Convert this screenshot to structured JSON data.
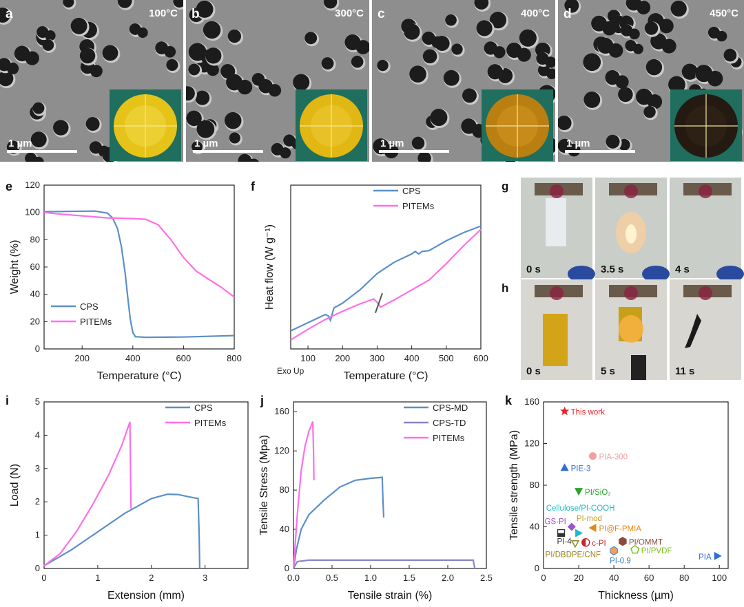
{
  "sem": [
    {
      "letter": "a",
      "temp": "100°C",
      "scale": "1 µm",
      "disc": "#e6c318",
      "glow": "#f4dd52"
    },
    {
      "letter": "b",
      "temp": "300°C",
      "scale": "1 µm",
      "disc": "#e1b714",
      "glow": "#f2cf3c"
    },
    {
      "letter": "c",
      "temp": "400°C",
      "scale": "1 µm",
      "disc": "#b97f10",
      "glow": "#d79c26"
    },
    {
      "letter": "d",
      "temp": "450°C",
      "scale": "1 µm",
      "disc": "#241a12",
      "glow": "#3a2a1c"
    }
  ],
  "photos": {
    "g": {
      "letter": "g",
      "frames": [
        "0 s",
        "3.5 s",
        "4 s"
      ]
    },
    "h": {
      "letter": "h",
      "frames": [
        "0 s",
        "5 s",
        "11 s"
      ]
    }
  },
  "chart_data": [
    {
      "id": "e",
      "type": "line",
      "letter": "e",
      "xlabel": "Temperature (°C)",
      "ylabel": "Weight (%)",
      "xlim": [
        50,
        800
      ],
      "ylim": [
        0,
        120
      ],
      "xticks": [
        200,
        400,
        600,
        800
      ],
      "yticks": [
        0,
        20,
        40,
        60,
        80,
        100,
        120
      ],
      "legend": [
        "CPS",
        "PITEMs"
      ],
      "legend_pos": "bottom-left",
      "series": [
        {
          "name": "CPS",
          "color": "#5b8fc8",
          "x": [
            50,
            150,
            250,
            300,
            320,
            340,
            355,
            370,
            380,
            390,
            400,
            410,
            450,
            600,
            800
          ],
          "y": [
            100.5,
            100.8,
            101,
            99.5,
            96,
            88,
            75,
            55,
            38,
            22,
            12,
            9,
            8.5,
            8.7,
            9.8
          ]
        },
        {
          "name": "PITEMs",
          "color": "#ff6ee8",
          "x": [
            50,
            100,
            200,
            300,
            400,
            450,
            500,
            550,
            600,
            650,
            700,
            750,
            800
          ],
          "y": [
            100,
            99,
            97.5,
            96,
            95.5,
            95,
            91,
            80,
            67,
            57,
            51,
            45,
            38
          ]
        }
      ]
    },
    {
      "id": "f",
      "type": "line",
      "letter": "f",
      "xlabel": "Temperature (°C)",
      "ylabel": "Heat flow (W g⁻¹)",
      "note": "Exo Up",
      "xlim": [
        50,
        600
      ],
      "ylim": [
        0,
        10
      ],
      "xticks": [
        100,
        200,
        300,
        400,
        500,
        600
      ],
      "yticks": [],
      "legend": [
        "CPS",
        "PITEMs"
      ],
      "legend_pos": "top-left",
      "series": [
        {
          "name": "CPS",
          "color": "#5b8fc8",
          "x": [
            50,
            100,
            150,
            160,
            165,
            175,
            200,
            250,
            300,
            350,
            400,
            410,
            420,
            430,
            450,
            500,
            550,
            600
          ],
          "y": [
            1.1,
            1.6,
            2.1,
            2.0,
            1.75,
            2.5,
            2.8,
            3.6,
            4.6,
            5.3,
            5.8,
            5.95,
            5.8,
            5.95,
            6.0,
            6.6,
            7.1,
            7.5
          ]
        },
        {
          "name": "PITEMs",
          "color": "#ff6ee8",
          "x": [
            50,
            100,
            150,
            200,
            250,
            290,
            300,
            310,
            350,
            400,
            450,
            500,
            550,
            600
          ],
          "y": [
            0.55,
            1.2,
            1.8,
            2.3,
            2.75,
            3.05,
            2.85,
            2.55,
            3.0,
            3.6,
            4.2,
            5.2,
            6.3,
            7.3
          ]
        }
      ]
    },
    {
      "id": "i",
      "type": "line",
      "letter": "i",
      "xlabel": "Extension (mm)",
      "ylabel": "Load (N)",
      "xlim": [
        0,
        3.8
      ],
      "ylim": [
        0,
        5
      ],
      "xticks": [
        0,
        1,
        2,
        3
      ],
      "yticks": [
        0,
        1,
        2,
        3,
        4,
        5
      ],
      "legend": [
        "CPS",
        "PITEMs"
      ],
      "legend_pos": "top-right",
      "series": [
        {
          "name": "CPS",
          "color": "#5b8fc8",
          "x": [
            0,
            0.5,
            1.0,
            1.5,
            2.0,
            2.3,
            2.5,
            2.7,
            2.87,
            2.89,
            2.9
          ],
          "y": [
            0.08,
            0.55,
            1.1,
            1.65,
            2.1,
            2.23,
            2.22,
            2.15,
            2.1,
            1.0,
            0
          ]
        },
        {
          "name": "PITEMs",
          "color": "#ff6ee8",
          "x": [
            0,
            0.3,
            0.6,
            0.9,
            1.2,
            1.45,
            1.6,
            1.61,
            1.62
          ],
          "y": [
            0.08,
            0.45,
            1.1,
            1.9,
            2.8,
            3.7,
            4.4,
            3.0,
            1.8
          ]
        }
      ]
    },
    {
      "id": "j",
      "type": "line",
      "letter": "j",
      "xlabel": "Tensile strain (%)",
      "ylabel": "Tensile Stress (Mpa)",
      "xlim": [
        0,
        2.5
      ],
      "ylim": [
        0,
        170
      ],
      "xticks": [
        0.0,
        0.5,
        1.0,
        1.5,
        2.0,
        2.5
      ],
      "yticks": [
        0,
        40,
        80,
        120,
        160
      ],
      "legend": [
        "CPS-MD",
        "CPS-TD",
        "PITEMs"
      ],
      "legend_pos": "top-right",
      "series": [
        {
          "name": "CPS-MD",
          "color": "#5b8fc8",
          "x": [
            0,
            0.04,
            0.1,
            0.2,
            0.4,
            0.6,
            0.8,
            1.0,
            1.15,
            1.16,
            1.17
          ],
          "y": [
            0,
            20,
            40,
            55,
            70,
            83,
            90,
            92,
            93,
            70,
            52
          ]
        },
        {
          "name": "CPS-TD",
          "color": "#8a86c8",
          "x": [
            0,
            0.05,
            0.2,
            1.0,
            2.0,
            2.33,
            2.34,
            2.35
          ],
          "y": [
            0,
            7,
            8.5,
            8.5,
            8.5,
            8.5,
            4,
            0
          ]
        },
        {
          "name": "PITEMs",
          "color": "#ff6ee8",
          "x": [
            0,
            0.05,
            0.1,
            0.15,
            0.2,
            0.25,
            0.26,
            0.265
          ],
          "y": [
            0,
            55,
            100,
            125,
            140,
            150,
            120,
            90
          ]
        }
      ]
    },
    {
      "id": "k",
      "type": "scatter",
      "letter": "k",
      "xlabel": "Thickness (µm)",
      "ylabel": "Tensile strength (MPa)",
      "xlim": [
        0,
        105
      ],
      "ylim": [
        0,
        160
      ],
      "xticks": [
        0,
        20,
        40,
        60,
        80,
        100
      ],
      "yticks": [
        0,
        40,
        80,
        120,
        160
      ],
      "points": [
        {
          "label": "This work",
          "x": 12,
          "y": 151,
          "color": "#e8202a",
          "marker": "star"
        },
        {
          "label": "PIA-300",
          "x": 28,
          "y": 108,
          "color": "#f4a0a0",
          "marker": "circle"
        },
        {
          "label": "PIE-3",
          "x": 12,
          "y": 97,
          "color": "#2f6fd0",
          "marker": "triangle-up"
        },
        {
          "label": "PI/SiO₂",
          "x": 20,
          "y": 74,
          "color": "#2ca02c",
          "marker": "triangle-down"
        },
        {
          "label": "Cellulose/PI-COOH",
          "x": 21,
          "y": 59,
          "color": "#20b8c8",
          "marker": "none"
        },
        {
          "label": "PI-mod",
          "x": 26,
          "y": 49,
          "color": "#c8a020",
          "marker": "none"
        },
        {
          "label": "GS-PI",
          "x": 16,
          "y": 40,
          "color": "#a050c8",
          "marker": "diamond"
        },
        {
          "label": "PI@F-PMIA",
          "x": 28,
          "y": 39,
          "color": "#e08a1a",
          "marker": "triangle-left"
        },
        {
          "label": "PI-4",
          "x": 10,
          "y": 34,
          "color": "#333333",
          "marker": "square-half"
        },
        {
          "label": "",
          "x": 20,
          "y": 34,
          "color": "#20b8c8",
          "marker": "triangle-right"
        },
        {
          "label": "PI/OMMT",
          "x": 45,
          "y": 26,
          "color": "#8b4a3a",
          "marker": "hexagon"
        },
        {
          "label": "c-PI",
          "x": 24,
          "y": 25,
          "color": "#c0282c",
          "marker": "circle-half"
        },
        {
          "label": "",
          "x": 18,
          "y": 24,
          "color": "#8a8a20",
          "marker": "triangle-down-open"
        },
        {
          "label": "PI/DBDPE/CNF",
          "x": 18,
          "y": 24,
          "color": "#a08a20",
          "marker": "none"
        },
        {
          "label": "PI/PVDF",
          "x": 52,
          "y": 18,
          "color": "#7ac020",
          "marker": "pentagon"
        },
        {
          "label": "PI-0.9",
          "x": 40,
          "y": 17,
          "color": "#3a80d0",
          "marker": "hex-half"
        },
        {
          "label": "PIA",
          "x": 99,
          "y": 12,
          "color": "#2f6fd0",
          "marker": "triangle-right"
        }
      ]
    }
  ]
}
